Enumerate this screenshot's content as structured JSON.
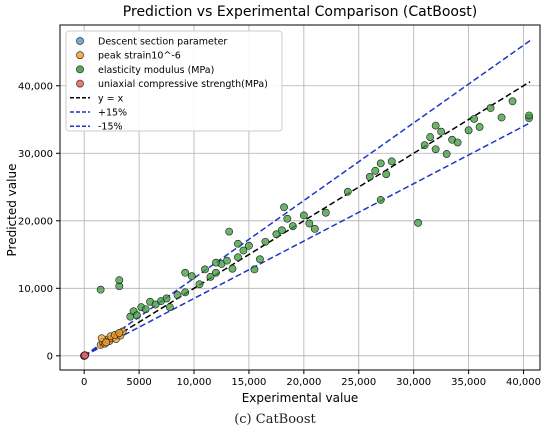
{
  "chart_data": {
    "type": "scatter",
    "title": "Prediction vs Experimental Comparison (CatBoost)",
    "xlabel": "Experimental value",
    "ylabel": "Predicted value",
    "xlim": [
      -2200,
      41500
    ],
    "ylim": [
      -2100,
      49000
    ],
    "xticks": [
      0,
      5000,
      10000,
      15000,
      20000,
      25000,
      30000,
      35000,
      40000
    ],
    "yticks": [
      0,
      10000,
      20000,
      30000,
      40000
    ],
    "xtick_labels": [
      "0",
      "5000",
      "10,000",
      "15,000",
      "20,000",
      "25,000",
      "30,000",
      "35,000",
      "40,000"
    ],
    "ytick_labels": [
      "0",
      "10,000",
      "20,000",
      "30,000",
      "40,000"
    ],
    "grid": true,
    "legend_position": "top-left",
    "series": [
      {
        "name": "Descent section parameter",
        "color": "#5b9bd5",
        "kind": "scatter",
        "x": [
          0,
          5,
          10,
          12,
          20,
          8,
          3,
          15
        ],
        "y": [
          0,
          6,
          9,
          14,
          22,
          11,
          5,
          18
        ]
      },
      {
        "name": "peak strain10^-6",
        "color": "#f0a030",
        "kind": "scatter",
        "x": [
          1500,
          1700,
          1900,
          2100,
          2300,
          2500,
          2700,
          2900,
          3100,
          3300,
          3500,
          1600,
          2000,
          2400,
          2800,
          3200
        ],
        "y": [
          1600,
          2100,
          1800,
          2400,
          2200,
          2600,
          2800,
          2500,
          3200,
          3000,
          3600,
          2600,
          2000,
          2900,
          3100,
          3400
        ]
      },
      {
        "name": "elasticity modulus (MPa)",
        "color": "#3a9a3a",
        "kind": "scatter",
        "x": [
          1500,
          3200,
          3200,
          4200,
          4500,
          4800,
          5200,
          5600,
          6000,
          6500,
          7000,
          7500,
          7800,
          8500,
          9200,
          9200,
          9800,
          10500,
          11000,
          11500,
          12000,
          12500,
          13000,
          13500,
          14000,
          14500,
          15000,
          15500,
          16500,
          17500,
          18000,
          18500,
          19000,
          20000,
          20500,
          21000,
          22000,
          24000,
          26000,
          26500,
          27000,
          27500,
          28000,
          30400,
          31000,
          31500,
          32000,
          32500,
          33000,
          33500,
          34000,
          35000,
          35500,
          36000,
          37000,
          38000,
          39000,
          40500,
          40500,
          12000,
          14000,
          16000,
          18200,
          13200,
          27000,
          32000
        ],
        "y": [
          9800,
          10300,
          11200,
          5800,
          6600,
          6000,
          7200,
          6900,
          8000,
          7600,
          8100,
          8500,
          7200,
          9000,
          9400,
          12300,
          11800,
          10600,
          12800,
          11700,
          12300,
          13600,
          14100,
          12900,
          14600,
          15600,
          16300,
          12800,
          16900,
          18000,
          18600,
          20300,
          19200,
          20800,
          19600,
          18800,
          21200,
          24300,
          26500,
          27400,
          28500,
          26900,
          28800,
          19700,
          31200,
          32400,
          30600,
          33200,
          29900,
          32000,
          31600,
          33400,
          35100,
          33900,
          36700,
          35300,
          37700,
          35200,
          35600,
          13800,
          16600,
          14300,
          22000,
          18400,
          23100,
          34100
        ]
      },
      {
        "name": "uniaxial compressive strength(MPa)",
        "color": "#e06060",
        "kind": "scatter",
        "x": [
          20,
          30,
          40,
          50,
          60,
          70,
          80,
          35,
          45,
          55
        ],
        "y": [
          25,
          32,
          45,
          48,
          65,
          72,
          86,
          40,
          52,
          58
        ]
      },
      {
        "name": "y = x",
        "color": "#000000",
        "kind": "line",
        "x": [
          0,
          40600
        ],
        "y": [
          0,
          40600
        ]
      },
      {
        "name": "+15%",
        "color": "#1f35c8",
        "kind": "line",
        "x": [
          0,
          40600
        ],
        "y": [
          0,
          46690
        ]
      },
      {
        "name": "-15%",
        "color": "#1f35c8",
        "kind": "line",
        "x": [
          0,
          40600
        ],
        "y": [
          0,
          34510
        ]
      }
    ]
  },
  "caption": "(c) CatBoost"
}
